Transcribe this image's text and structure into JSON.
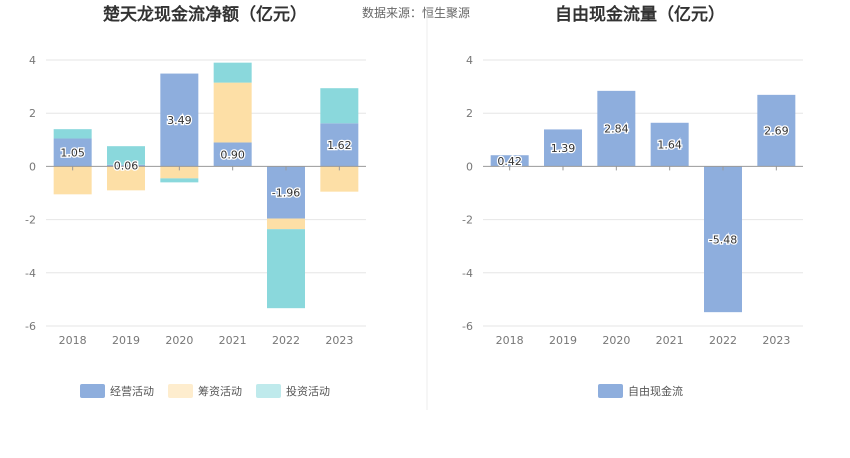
{
  "source_text": "数据来源：恒生聚源",
  "colors": {
    "operating": "#8eaedd",
    "financing": "#fddfa6",
    "investing": "#8ad8dc",
    "free_cash_flow": "#8eaedd",
    "grid": "#e6e6e6",
    "axis": "#999999"
  },
  "chart_data": [
    {
      "type": "bar",
      "stacked": true,
      "title": "楚天龙现金流净额（亿元）",
      "categories": [
        "2018",
        "2019",
        "2020",
        "2021",
        "2022",
        "2023"
      ],
      "ylim": [
        -6,
        4
      ],
      "yticks": [
        -6,
        -4,
        -2,
        0,
        2,
        4
      ],
      "grid": true,
      "legend_position": "bottom",
      "series": [
        {
          "name": "经营活动",
          "color_key": "operating",
          "values": [
            1.05,
            0.06,
            3.49,
            0.9,
            -1.96,
            1.62
          ],
          "labels": [
            "1.05",
            "0.06",
            "3.49",
            "0.90",
            "-1.96",
            "1.62"
          ]
        },
        {
          "name": "筹资活动",
          "color_key": "financing",
          "values": [
            -1.05,
            -0.9,
            -0.45,
            2.25,
            -0.4,
            -0.95
          ]
        },
        {
          "name": "投资活动",
          "color_key": "investing",
          "values": [
            0.35,
            0.7,
            -0.15,
            0.75,
            -2.97,
            1.32
          ]
        }
      ]
    },
    {
      "type": "bar",
      "title": "自由现金流量（亿元）",
      "categories": [
        "2018",
        "2019",
        "2020",
        "2021",
        "2022",
        "2023"
      ],
      "ylim": [
        -6,
        4
      ],
      "yticks": [
        -6,
        -4,
        -2,
        0,
        2,
        4
      ],
      "grid": true,
      "legend_position": "bottom",
      "series": [
        {
          "name": "自由现金流",
          "color_key": "free_cash_flow",
          "values": [
            0.42,
            1.39,
            2.84,
            1.64,
            -5.48,
            2.69
          ],
          "labels": [
            "0.42",
            "1.39",
            "2.84",
            "1.64",
            "-5.48",
            "2.69"
          ]
        }
      ]
    }
  ]
}
